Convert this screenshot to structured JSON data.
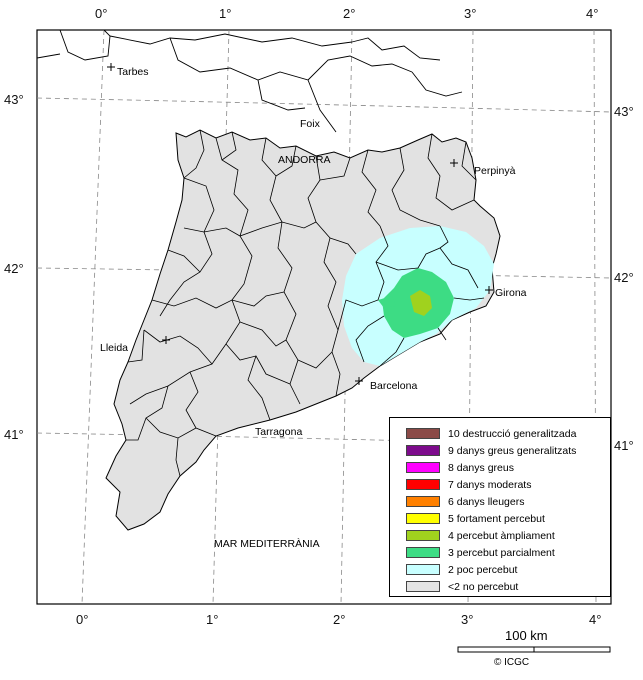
{
  "top_axis": {
    "labels": [
      "0°",
      "1°",
      "2°",
      "3°",
      "4°"
    ]
  },
  "bottom_axis": {
    "labels": [
      "0°",
      "1°",
      "2°",
      "3°",
      "4°"
    ]
  },
  "left_axis": {
    "labels": [
      "43°",
      "42°",
      "41°"
    ]
  },
  "right_axis": {
    "labels": [
      "43°",
      "42°",
      "41°"
    ]
  },
  "places": {
    "tarbes": "Tarbes",
    "foix": "Foix",
    "andorra": "ANDORRA",
    "perpinya": "Perpinyà",
    "girona": "Girona",
    "lleida": "Lleida",
    "barcelona": "Barcelona",
    "tarragona": "Tarragona",
    "sea": "MAR MEDITERRÀNIA"
  },
  "legend": {
    "items": [
      {
        "label": "10 destrucció generalitzada",
        "color": "#8b4a47"
      },
      {
        "label": "9 danys greus generalitzats",
        "color": "#7d0b8c"
      },
      {
        "label": "8 danys greus",
        "color": "#ff00ff"
      },
      {
        "label": "7 danys moderats",
        "color": "#ff0000"
      },
      {
        "label": "6 danys lleugers",
        "color": "#ff8000"
      },
      {
        "label": "5 fortament percebut",
        "color": "#ffff00"
      },
      {
        "label": "4 percebut àmpliament",
        "color": "#a0d21e"
      },
      {
        "label": "3 percebut parcialment",
        "color": "#3ddc84"
      },
      {
        "label": "2 poc percebut",
        "color": "#c8ffff"
      },
      {
        "label": "<2 no percebut",
        "color": "#e4e4e4"
      }
    ]
  },
  "scale": {
    "label": "100 km"
  },
  "credit": "© ICGC"
}
